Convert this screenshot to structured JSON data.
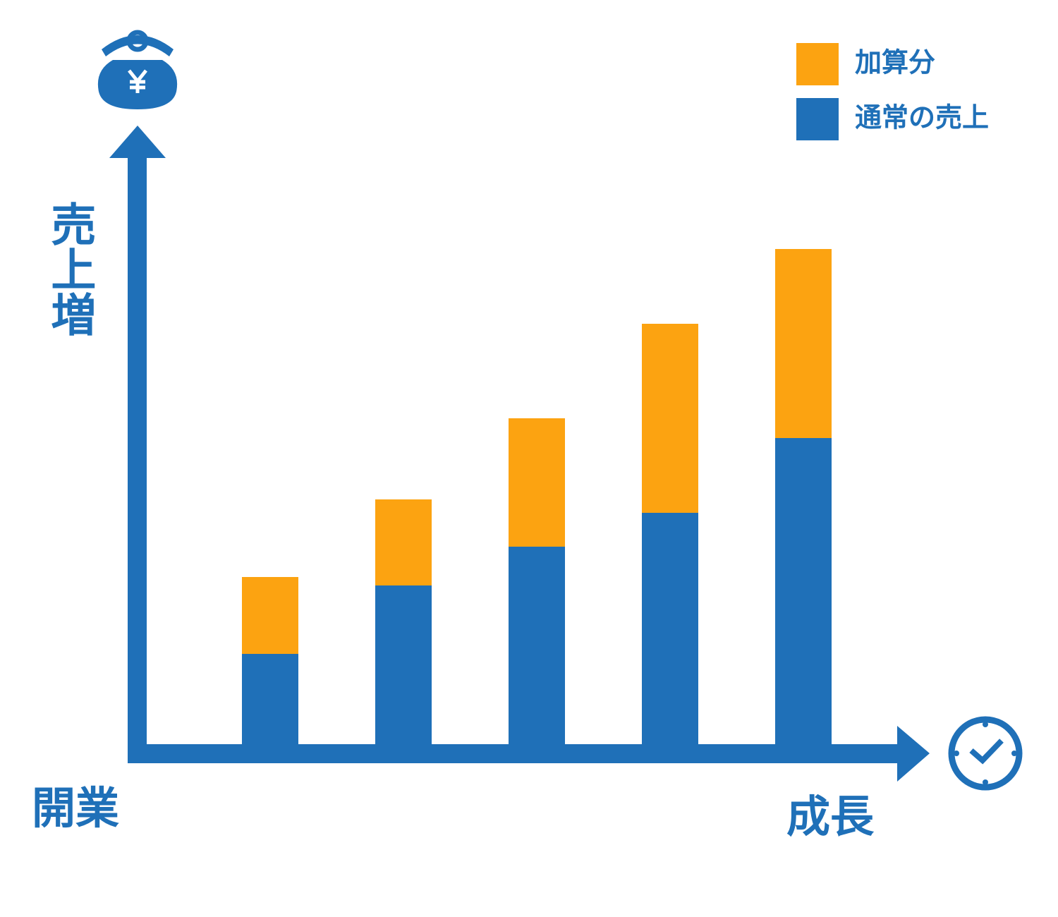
{
  "chart_data": {
    "type": "bar",
    "stacked": true,
    "y_label": "売上増",
    "x_start_label": "開業",
    "x_end_label": "成長",
    "categories": [
      null,
      null,
      null,
      null,
      null
    ],
    "series": [
      {
        "name": "通常の売上",
        "color": "#1f70b8",
        "values": [
          128,
          225,
          280,
          328,
          434
        ]
      },
      {
        "name": "加算分",
        "color": "#fca311",
        "values": [
          109,
          122,
          182,
          268,
          268
        ]
      }
    ],
    "ylim": [
      0,
      875
    ],
    "legend": "top-right"
  }
}
